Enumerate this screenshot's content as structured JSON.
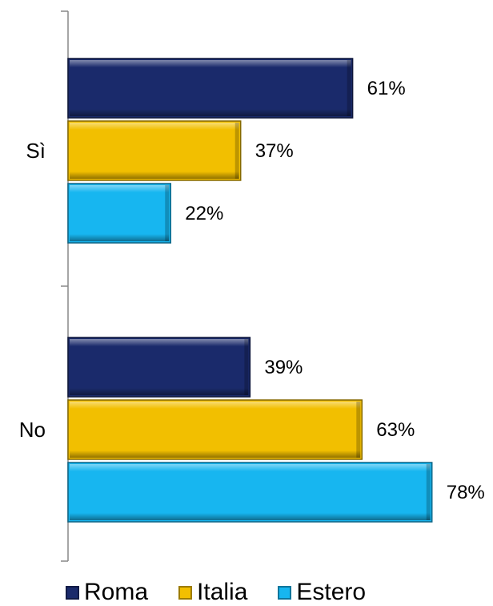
{
  "chart_data": {
    "type": "bar",
    "orientation": "horizontal",
    "categories": [
      "Sì",
      "No"
    ],
    "series": [
      {
        "name": "Roma",
        "values": [
          61,
          39
        ],
        "labels": [
          "61%",
          "39%"
        ],
        "color": "#1a2a6b"
      },
      {
        "name": "Italia",
        "values": [
          37,
          63
        ],
        "labels": [
          "37%",
          "63%"
        ],
        "color": "#f2bf00"
      },
      {
        "name": "Estero",
        "values": [
          22,
          78
        ],
        "labels": [
          "22%",
          "78%"
        ],
        "color": "#17b6f0"
      }
    ],
    "xlim": [
      0,
      100
    ],
    "grid": false,
    "legend_position": "bottom"
  },
  "legend": {
    "items": [
      {
        "label": "Roma",
        "color": "#1a2a6b"
      },
      {
        "label": "Italia",
        "color": "#f2bf00"
      },
      {
        "label": "Estero",
        "color": "#17b6f0"
      }
    ]
  }
}
